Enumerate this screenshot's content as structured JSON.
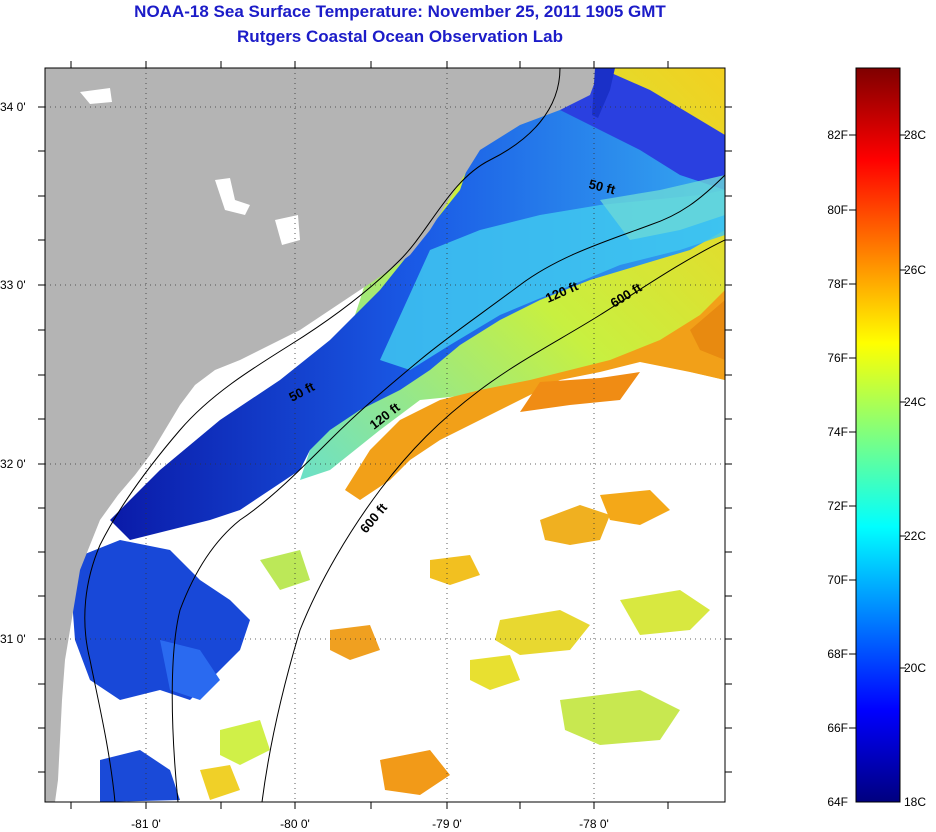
{
  "header": {
    "title": "NOAA-18 Sea Surface Temperature:  November 25, 2011 1905 GMT",
    "subtitle": "Rutgers Coastal Ocean Observation Lab"
  },
  "map": {
    "lon_ticks": [
      "-81 0'",
      "-80 0'",
      "-79 0'",
      "-78 0'"
    ],
    "lat_ticks": [
      "34 0'",
      "33 0'",
      "32 0'",
      "31 0'"
    ],
    "contours": {
      "c50_upper": "50 ft",
      "c50_lower": "50 ft",
      "c120_upper": "120 ft",
      "c120_lower": "120 ft",
      "c600_upper": "600 ft",
      "c600_lower": "600 ft"
    },
    "colors": {
      "land": "#b4b4b4",
      "nodata": "#ffffff"
    }
  },
  "colorbar": {
    "fahrenheit": [
      "82F",
      "80F",
      "78F",
      "76F",
      "74F",
      "72F",
      "70F",
      "68F",
      "66F",
      "64F"
    ],
    "celsius": [
      "28C",
      "26C",
      "24C",
      "22C",
      "20C",
      "18C"
    ],
    "colors": [
      "#00007f",
      "#0000ff",
      "#007fff",
      "#00ffff",
      "#7fff7f",
      "#ffff00",
      "#ff7f00",
      "#ff0000",
      "#7f0000"
    ]
  }
}
